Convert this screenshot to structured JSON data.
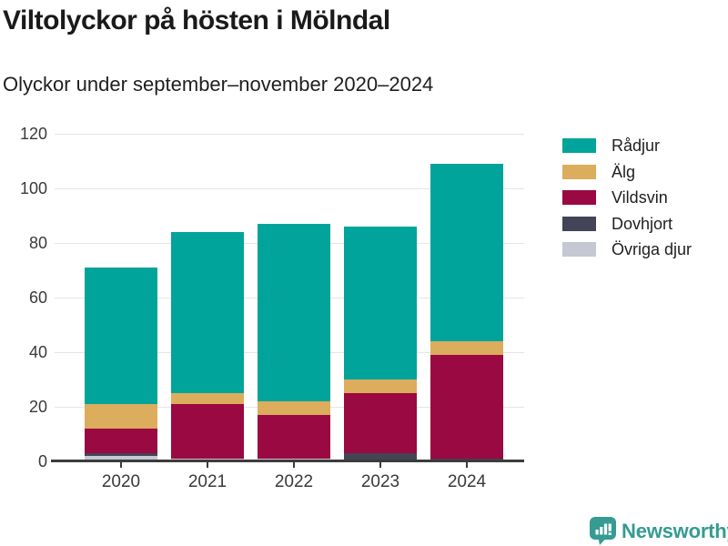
{
  "header": {
    "title": "Viltolyckor på hösten i Mölndal",
    "subtitle": "Olyckor under september–november 2020–2024"
  },
  "chart_data": {
    "type": "bar",
    "stacked": true,
    "title": "Viltolyckor på hösten i Mölndal",
    "subtitle": "Olyckor under september–november 2020–2024",
    "categories": [
      "2020",
      "2021",
      "2022",
      "2023",
      "2024"
    ],
    "series": [
      {
        "name": "Rådjur",
        "color": "#00a49a",
        "values": [
          50,
          59,
          65,
          56,
          65
        ]
      },
      {
        "name": "Älg",
        "color": "#dbad5c",
        "values": [
          9,
          4,
          5,
          5,
          5
        ]
      },
      {
        "name": "Vildsvin",
        "color": "#9a0941",
        "values": [
          9,
          20,
          16,
          22,
          38
        ]
      },
      {
        "name": "Dovhjort",
        "color": "#434455",
        "values": [
          1,
          0,
          0,
          3,
          1
        ]
      },
      {
        "name": "Övriga djur",
        "color": "#c5c8d2",
        "values": [
          2,
          1,
          1,
          0,
          0
        ]
      }
    ],
    "stack_order_bottom_to_top": [
      "Övriga djur",
      "Dovhjort",
      "Vildsvin",
      "Älg",
      "Rådjur"
    ],
    "stack_totals": [
      71,
      84,
      87,
      86,
      109
    ],
    "xlabel": "",
    "ylabel": "",
    "ylim": [
      0,
      120
    ],
    "yticks": [
      0,
      20,
      40,
      60,
      80,
      100,
      120
    ],
    "grid": true,
    "legend_position": "right",
    "colors": {
      "gridline": "#e5e5e5",
      "axis_line": "#3c3c3c",
      "tick_text": "#3a3a3a"
    }
  },
  "branding": {
    "name": "Newsworthy",
    "color": "#359b93",
    "icon": "bar-chart-speech-bubble-icon"
  }
}
